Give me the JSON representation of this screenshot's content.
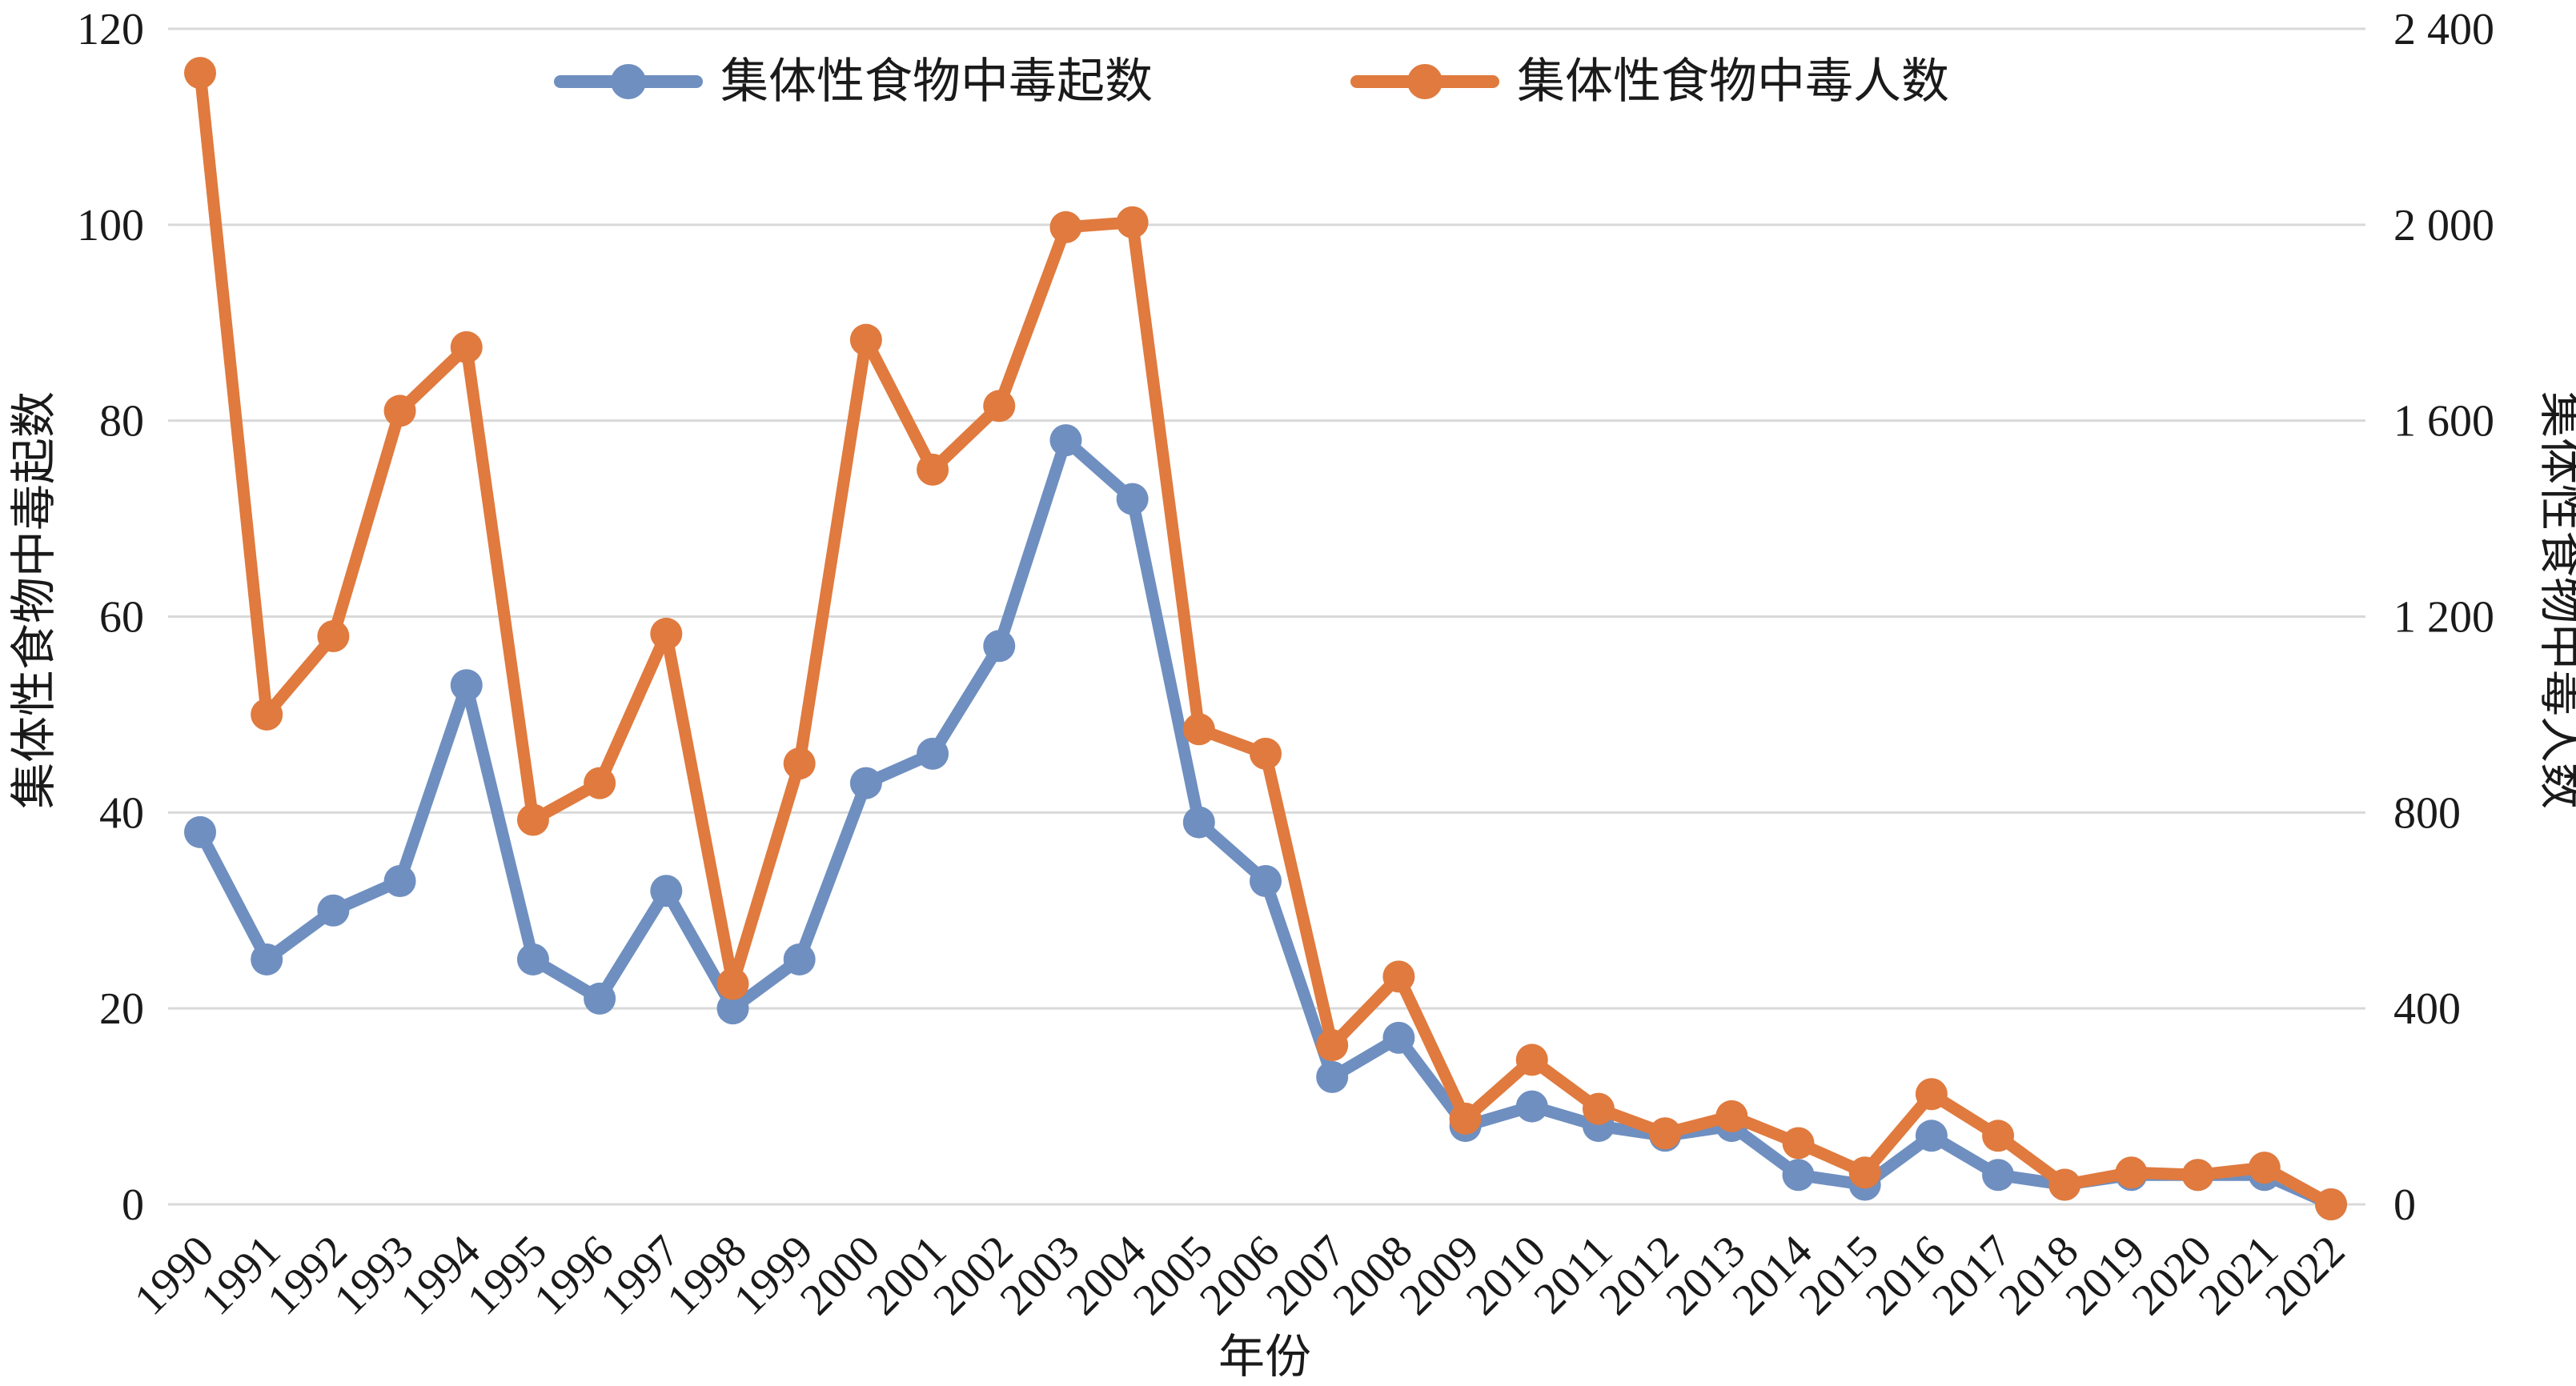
{
  "chart_data": {
    "type": "line",
    "x": [
      "1990",
      "1991",
      "1992",
      "1993",
      "1994",
      "1995",
      "1996",
      "1997",
      "1998",
      "1999",
      "2000",
      "2001",
      "2002",
      "2003",
      "2004",
      "2005",
      "2006",
      "2007",
      "2008",
      "2009",
      "2010",
      "2011",
      "2012",
      "2013",
      "2014",
      "2015",
      "2016",
      "2017",
      "2018",
      "2019",
      "2020",
      "2021",
      "2022"
    ],
    "xlabel": "年份",
    "ylabel_left": "集体性食物中毒起数",
    "ylabel_right": "集体性食物中毒人数",
    "ylim_left": [
      0,
      120
    ],
    "ylim_right": [
      0,
      2400
    ],
    "yticks_left": [
      "0",
      "20",
      "40",
      "60",
      "80",
      "100",
      "120"
    ],
    "yticks_right": [
      "0",
      "400",
      "800",
      "1 200",
      "1 600",
      "2 000",
      "2 400"
    ],
    "grid": true,
    "legend_position": "top",
    "series": [
      {
        "name": "集体性食物中毒起数",
        "axis": "left",
        "color": "#6f8fc0",
        "values": [
          38,
          25,
          30,
          33,
          53,
          25,
          21,
          32,
          20,
          25,
          43,
          46,
          57,
          78,
          72,
          39,
          33,
          13,
          17,
          8,
          10,
          8,
          7,
          8,
          3,
          2,
          7,
          3,
          2,
          3,
          3,
          3,
          0
        ]
      },
      {
        "name": "集体性食物中毒人数",
        "axis": "right",
        "color": "#e07a3e",
        "values": [
          2310,
          1000,
          1160,
          1620,
          1750,
          785,
          860,
          1165,
          450,
          900,
          1765,
          1500,
          1630,
          1995,
          2005,
          970,
          920,
          325,
          465,
          175,
          295,
          195,
          145,
          180,
          125,
          65,
          225,
          140,
          40,
          65,
          60,
          75,
          0
        ]
      }
    ]
  }
}
